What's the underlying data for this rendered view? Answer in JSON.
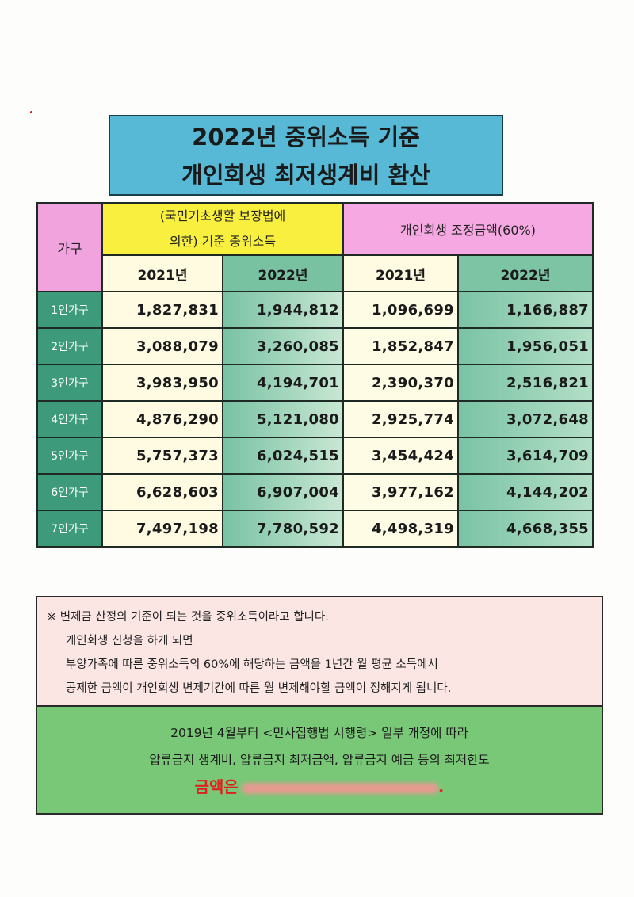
{
  "title": {
    "line1": "2022년 중위소득 기준",
    "line2": "개인회생 최저생계비 환산"
  },
  "table": {
    "header_household": "가구",
    "header_median": "(국민기초생활 보장법에 의한) 기준 중위소득",
    "header_median_l1": "(국민기초생활 보장법에",
    "header_median_l2": "의한) 기준 중위소득",
    "header_adjust": "개인회생 조정금액(60%)",
    "years": [
      "2021년",
      "2022년",
      "2021년",
      "2022년"
    ],
    "rows": [
      {
        "label": "1인가구",
        "values": [
          "1,827,831",
          "1,944,812",
          "1,096,699",
          "1,166,887"
        ]
      },
      {
        "label": "2인가구",
        "values": [
          "3,088,079",
          "3,260,085",
          "1,852,847",
          "1,956,051"
        ]
      },
      {
        "label": "3인가구",
        "values": [
          "3,983,950",
          "4,194,701",
          "2,390,370",
          "2,516,821"
        ]
      },
      {
        "label": "4인가구",
        "values": [
          "4,876,290",
          "5,121,080",
          "2,925,774",
          "3,072,648"
        ]
      },
      {
        "label": "5인가구",
        "values": [
          "5,757,373",
          "6,024,515",
          "3,454,424",
          "3,614,709"
        ]
      },
      {
        "label": "6인가구",
        "values": [
          "6,628,603",
          "6,907,004",
          "3,977,162",
          "4,144,202"
        ]
      },
      {
        "label": "7인가구",
        "values": [
          "7,497,198",
          "7,780,592",
          "4,498,319",
          "4,668,355"
        ]
      }
    ]
  },
  "note": {
    "line1": "※  변제금 산정의 기준이 되는 것을 중위소득이라고 합니다.",
    "line2": "개인회생 신청을 하게 되면",
    "line3": "부양가족에 따른 중위소득의 60%에 해당하는 금액을 1년간 월 평균 소득에서",
    "line4": "공제한  금액이 개인회생 변제기간에 따른 월 변제해야할 금액이 정해지게 됩니다."
  },
  "law": {
    "line1": "2019년 4월부터 <민사집행법 시행령> 일부 개정에 따라",
    "line2": "압류금지 생계비, 압류금지 최저금액, 압류금지 예금 등의 최저한도",
    "amount_prefix": "금액은",
    "amount_suffix": "."
  },
  "colors": {
    "title_bg": "#57b9d5",
    "household_header": "#f1a3de",
    "median_header": "#f8ef3f",
    "row_label": "#3d9a7a",
    "law_bg": "#79c878",
    "note_bg": "#fbe6e4",
    "amount_text": "#e0201f"
  }
}
